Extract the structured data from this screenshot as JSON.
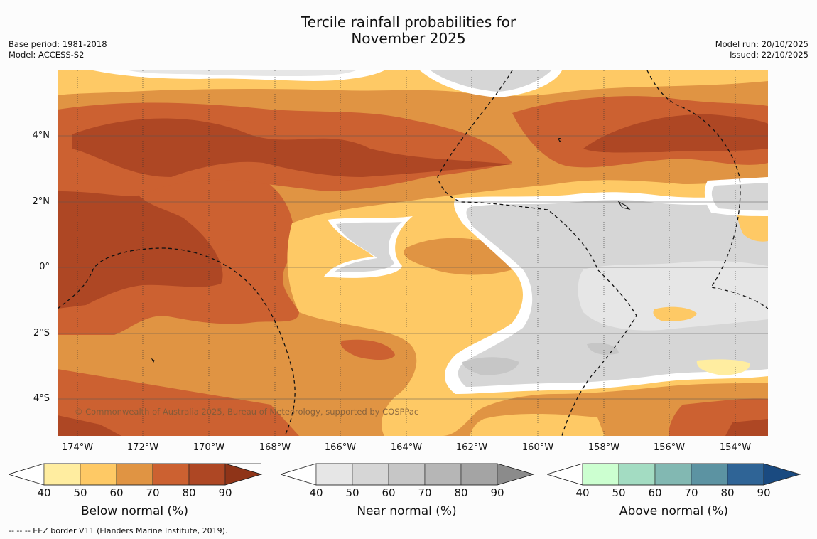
{
  "title": {
    "line1": "Tercile rainfall probabilities for",
    "line2": "November 2025"
  },
  "meta_left": {
    "base_period": "Base period: 1981-2018",
    "model": "Model: ACCESS-S2"
  },
  "meta_right": {
    "model_run": "Model run: 20/10/2025",
    "issued": "Issued: 22/10/2025"
  },
  "map": {
    "lat_labels": [
      "4°N",
      "2°N",
      "0°",
      "2°S",
      "4°S"
    ],
    "lon_labels": [
      "174°W",
      "172°W",
      "170°W",
      "168°W",
      "166°W",
      "164°W",
      "162°W",
      "160°W",
      "158°W",
      "156°W",
      "154°W"
    ],
    "copyright": "© Commonwealth of Australia 2025, Bureau of Meteorology, supported by COSPPac"
  },
  "colorbars": [
    {
      "title": "Below normal (%)",
      "ticks": [
        "40",
        "50",
        "60",
        "70",
        "80",
        "90"
      ],
      "colors": [
        "#ffffff",
        "#ffeda0",
        "#fec965",
        "#e09443",
        "#cc6131",
        "#ae4724",
        "#8f3418"
      ]
    },
    {
      "title": "Near normal (%)",
      "ticks": [
        "40",
        "50",
        "60",
        "70",
        "80",
        "90"
      ],
      "colors": [
        "#ffffff",
        "#e6e6e6",
        "#d6d6d6",
        "#c6c6c6",
        "#b6b6b6",
        "#a4a4a4",
        "#8b8b8b"
      ]
    },
    {
      "title": "Above normal (%)",
      "ticks": [
        "40",
        "50",
        "60",
        "70",
        "80",
        "90"
      ],
      "colors": [
        "#ffffff",
        "#ccffd0",
        "#a3dcc2",
        "#82b8b2",
        "#5c93a2",
        "#2f6496",
        "#1a4a80"
      ]
    }
  ],
  "footnote": "--  --  -- EEZ border V11 (Flanders Marine Institute, 2019)."
}
